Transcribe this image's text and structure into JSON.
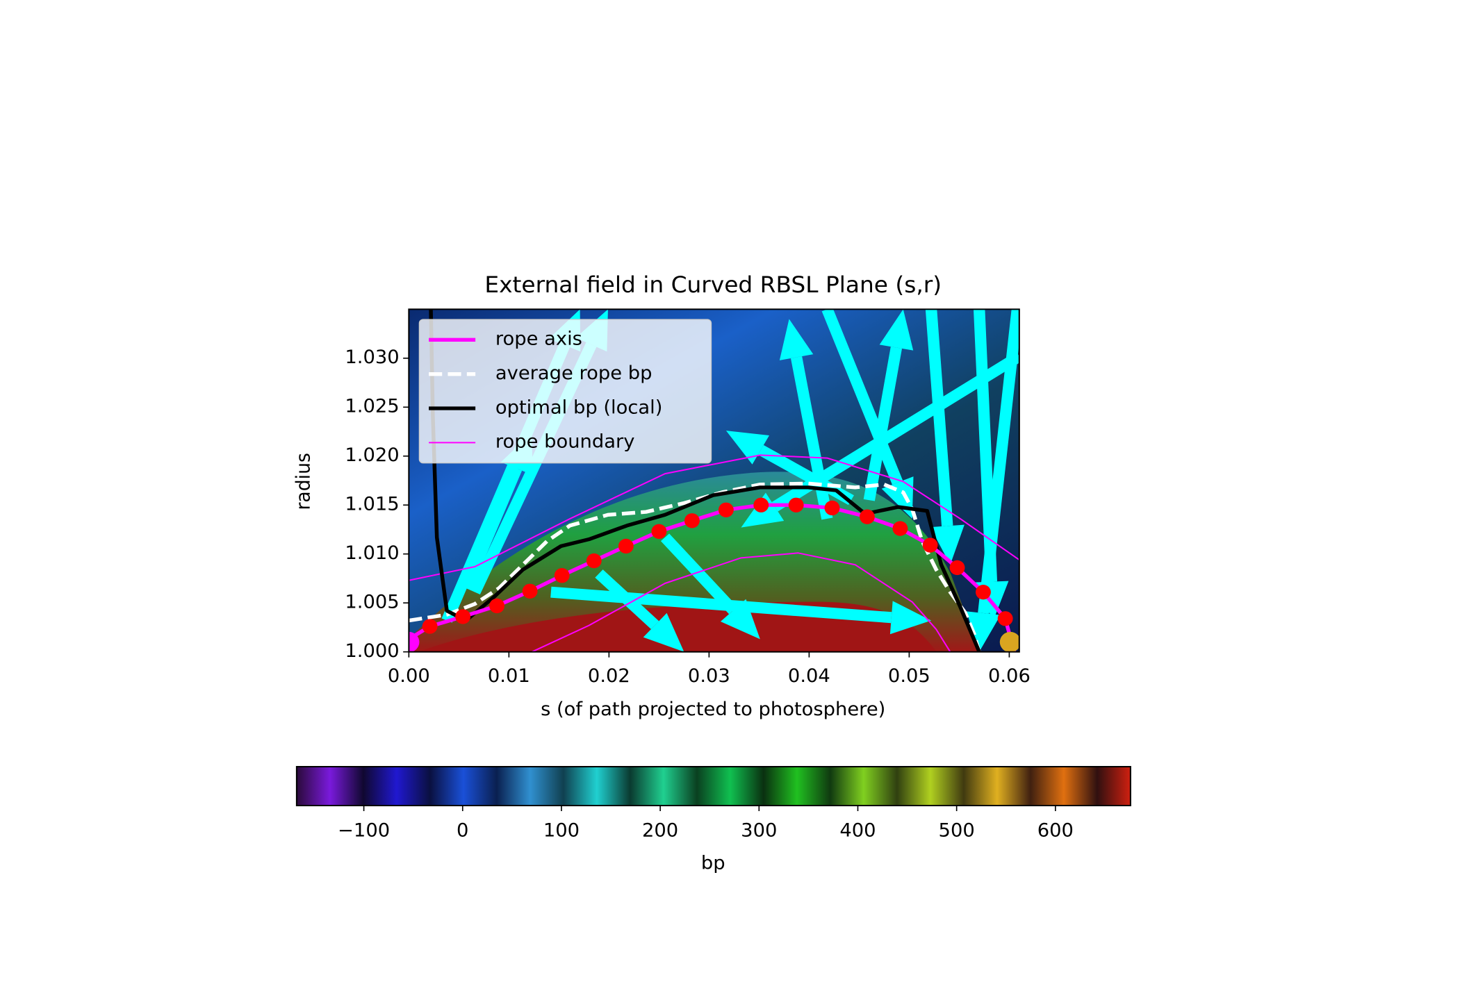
{
  "chart_data": {
    "type": "line",
    "title": "External field in Curved RBSL Plane (s,r)",
    "x_label": "s (of path projected to photosphere)",
    "y_label": "radius",
    "xlim": [
      0,
      0.061
    ],
    "ylim": [
      1.0,
      1.035
    ],
    "xticks": [
      {
        "value": 0,
        "label": "0.00"
      },
      0.01,
      0.02,
      0.03,
      0.04,
      0.05,
      0.06
    ],
    "yticks": [
      {
        "value": 1.0,
        "label": "1.000"
      },
      1.005,
      {
        "value": 1.01,
        "label": "1.010"
      },
      1.015,
      {
        "value": 1.02,
        "label": "1.020"
      },
      1.025,
      {
        "value": 1.03,
        "label": "1.030"
      }
    ],
    "legend": "upper left",
    "series": [
      {
        "name": "rope axis",
        "color": "#ff00ff",
        "width": 4,
        "x": [
          0,
          0.0021,
          0.0054,
          0.0088,
          0.0121,
          0.0153,
          0.0185,
          0.0217,
          0.025,
          0.0283,
          0.0317,
          0.0352,
          0.0387,
          0.0423,
          0.0458,
          0.0491,
          0.0521,
          0.0548,
          0.0574,
          0.0596,
          0.0605
        ],
        "values": [
          1.0013,
          1.0026,
          1.0036,
          1.0047,
          1.0062,
          1.0078,
          1.0093,
          1.0108,
          1.0123,
          1.0134,
          1.0145,
          1.015,
          1.015,
          1.0147,
          1.0138,
          1.0126,
          1.0109,
          1.0086,
          1.0061,
          1.0034,
          1.0
        ]
      },
      {
        "name": "average rope bp",
        "color": "#ffffff",
        "width": 4,
        "dashed": true,
        "x": [
          0,
          0.0038,
          0.0066,
          0.009,
          0.0114,
          0.0138,
          0.0161,
          0.0199,
          0.0237,
          0.0275,
          0.0313,
          0.0351,
          0.0399,
          0.0446,
          0.0475,
          0.0494,
          0.0503,
          0.0513,
          0.0527,
          0.0541,
          0.0556,
          0.0565,
          0.057
        ],
        "values": [
          1.0032,
          1.0038,
          1.0049,
          1.0065,
          1.0089,
          1.0113,
          1.0129,
          1.014,
          1.0143,
          1.0152,
          1.0163,
          1.0171,
          1.0172,
          1.0168,
          1.0171,
          1.0163,
          1.0146,
          1.0113,
          1.0084,
          1.0061,
          1.004,
          1.0018,
          1.0
        ]
      },
      {
        "name": "optimal bp (local)",
        "color": "#000000",
        "width": 4,
        "x": [
          0.0022,
          0.0024,
          0.0028,
          0.0038,
          0.0057,
          0.0085,
          0.0114,
          0.0152,
          0.018,
          0.0218,
          0.0256,
          0.0304,
          0.0351,
          0.0399,
          0.0427,
          0.0456,
          0.0489,
          0.0518,
          0.0532,
          0.0551,
          0.057
        ],
        "values": [
          1.035,
          1.024,
          1.0117,
          1.0042,
          1.0032,
          1.0056,
          1.0084,
          1.0108,
          1.0115,
          1.0129,
          1.014,
          1.016,
          1.0168,
          1.0168,
          1.0165,
          1.0141,
          1.0148,
          1.0144,
          1.0089,
          1.0046,
          1.0
        ]
      },
      {
        "name": "rope boundary",
        "color": "#ff00ff",
        "width": 1.5,
        "x": [
          0,
          0.0066,
          0.0161,
          0.0256,
          0.0351,
          0.0418,
          0.0494,
          0.0551,
          0.061,
          null,
          0.0123,
          0.018,
          0.0256,
          0.0332,
          0.0389,
          0.0446,
          0.0503,
          0.0527,
          0.0541
        ],
        "values": [
          1.0073,
          1.0087,
          1.0136,
          1.0182,
          1.0201,
          1.0198,
          1.0174,
          1.0136,
          1.0094,
          null,
          1.0,
          1.0027,
          1.007,
          1.0096,
          1.0101,
          1.0089,
          1.0051,
          1.0023,
          1.0
        ]
      }
    ],
    "points": {
      "color": "#ff0000",
      "x": [
        0.0021,
        0.0054,
        0.0088,
        0.0121,
        0.0153,
        0.0185,
        0.0217,
        0.025,
        0.0283,
        0.0317,
        0.0352,
        0.0387,
        0.0423,
        0.0458,
        0.0491,
        0.0521,
        0.0548,
        0.0574,
        0.0596
      ],
      "values": [
        1.0026,
        1.0036,
        1.0047,
        1.0062,
        1.0078,
        1.0093,
        1.0108,
        1.0123,
        1.0134,
        1.0145,
        1.015,
        1.015,
        1.0147,
        1.0138,
        1.0126,
        1.0109,
        1.0086,
        1.0061,
        1.0034
      ]
    },
    "endpoints": {
      "colors": [
        "#ff00ff",
        "#daa520"
      ],
      "x": [
        0,
        0.0601
      ],
      "values": [
        1.001,
        1.001
      ]
    },
    "arrow_color": "#00ffff",
    "arrows": [
      [
        0.0057,
        1.0065,
        0.0123,
        1.0224
      ],
      [
        0.0038,
        1.0032,
        0.0171,
        1.035
      ],
      [
        0.0066,
        1.0061,
        0.0199,
        1.035
      ],
      [
        0.0142,
        1.0061,
        0.0522,
        1.0032
      ],
      [
        0.0442,
        1.0155,
        0.0317,
        1.0226
      ],
      [
        0.0418,
        1.0136,
        0.038,
        1.034
      ],
      [
        0.061,
        1.0302,
        0.0332,
        1.0127
      ],
      [
        0.0256,
        1.0117,
        0.0351,
        1.0013
      ],
      [
        0.019,
        1.008,
        0.0275,
        1.0
      ],
      [
        0.0418,
        1.035,
        0.0503,
        1.0136
      ],
      [
        0.0522,
        1.035,
        0.0541,
        1.0089
      ],
      [
        0.0608,
        1.035,
        0.057,
        1.0
      ],
      [
        0.057,
        1.035,
        0.0584,
        1.0032
      ],
      [
        0.046,
        1.0155,
        0.0494,
        1.035
      ]
    ],
    "colorbar": {
      "label": "bp",
      "lim": [
        -168,
        676
      ],
      "ticks": [
        {
          "value": -100,
          "label": "−100"
        },
        0,
        100,
        200,
        300,
        400,
        500,
        600
      ],
      "colors": [
        "#2a0a3a",
        "#7a1adc",
        "#100830",
        "#2018d0",
        "#0a1040",
        "#1a50d8",
        "#0a2050",
        "#3090d0",
        "#104050",
        "#20d0d0",
        "#0a3a30",
        "#20d090",
        "#0a4020",
        "#10c050",
        "#0a3010",
        "#20c020",
        "#103a10",
        "#80d020",
        "#304010",
        "#b0d020",
        "#403a10",
        "#e0b020",
        "#402010",
        "#e07010",
        "#301010",
        "#d02010"
      ]
    }
  }
}
